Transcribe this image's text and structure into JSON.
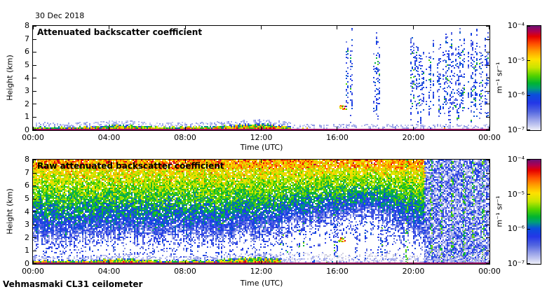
{
  "page": {
    "date_label": "30 Dec 2018",
    "footer_label": "Vehmasmaki CL31 ceilometer",
    "background": "#ffffff",
    "frame_color": "#000000"
  },
  "color_scale": {
    "description": "log backscatter 1e-7 (pale) to 1e-4 (dark purple)",
    "stops": [
      [
        0,
        "#eceef9"
      ],
      [
        0.04,
        "#c9cdf2"
      ],
      [
        0.1,
        "#97a1e9"
      ],
      [
        0.18,
        "#5164e0"
      ],
      [
        0.26,
        "#2337e8"
      ],
      [
        0.34,
        "#0a50dc"
      ],
      [
        0.4,
        "#00a078"
      ],
      [
        0.45,
        "#00b432"
      ],
      [
        0.52,
        "#50d200"
      ],
      [
        0.6,
        "#c8e600"
      ],
      [
        0.68,
        "#ffe100"
      ],
      [
        0.76,
        "#ff9c00"
      ],
      [
        0.83,
        "#ff5000"
      ],
      [
        0.9,
        "#e60000"
      ],
      [
        0.95,
        "#b00050"
      ],
      [
        1,
        "#701070"
      ]
    ]
  },
  "chart_data": [
    {
      "type": "heatmap",
      "title": "Attenuated backscatter coefficient",
      "xlabel": "Time (UTC)",
      "ylabel": "Height (km)",
      "x_ticks": [
        "00:00",
        "04:00",
        "08:00",
        "12:00",
        "16:00",
        "20:00",
        "00:00"
      ],
      "x_range_hours": [
        0,
        24
      ],
      "y_ticks": [
        "0",
        "1",
        "2",
        "3",
        "4",
        "5",
        "6",
        "7",
        "8"
      ],
      "y_range_km": [
        0,
        8
      ],
      "colorbar": {
        "unit": "m⁻¹ sr⁻¹",
        "tick_labels": [
          "10⁻⁴",
          "10⁻⁵",
          "10⁻⁶",
          "10⁻⁷"
        ],
        "min": 1e-07,
        "max": 0.0001
      },
      "seed": 11,
      "features": [
        {
          "kind": "surface_band",
          "time_h": [
            0,
            24
          ],
          "base_top_km": 0.25,
          "bumps": [
            {
              "center_h": 4.7,
              "width_h": 1.3,
              "extra_km": 0.15
            },
            {
              "center_h": 11.6,
              "width_h": 1.7,
              "extra_km": 0.25
            }
          ],
          "thin_after_h": 13.5,
          "thin_top_km": 0.12,
          "sparse_after_h": 16.5
        },
        {
          "kind": "virga_streaks",
          "bot_km": [
            0.5,
            2.2
          ],
          "top_km": [
            5.6,
            7.8
          ],
          "groups": [
            {
              "time_h": [
                16.25,
                16.8
              ],
              "col_prob": 0.5,
              "density": 0.25
            },
            {
              "time_h": [
                17.75,
                18.55
              ],
              "col_prob": 0.5,
              "density": 0.25
            },
            {
              "time_h": [
                19.85,
                23.95
              ],
              "col_prob": 0.8,
              "density": 0.3
            }
          ]
        },
        {
          "kind": "cloud_spot",
          "time_h": 16.2,
          "height_km": 1.78
        }
      ]
    },
    {
      "type": "heatmap",
      "title": "Raw attenuated backscatter coefficient",
      "xlabel": "Time (UTC)",
      "ylabel": "Height (km)",
      "x_ticks": [
        "00:00",
        "04:00",
        "08:00",
        "12:00",
        "16:00",
        "20:00",
        "00:00"
      ],
      "x_range_hours": [
        0,
        24
      ],
      "y_ticks": [
        "0",
        "1",
        "2",
        "3",
        "4",
        "5",
        "6",
        "7",
        "8"
      ],
      "y_range_km": [
        0,
        8
      ],
      "colorbar": {
        "unit": "m⁻¹ sr⁻¹",
        "tick_labels": [
          "10⁻⁴",
          "10⁻⁵",
          "10⁻⁶",
          "10⁻⁷"
        ],
        "min": 1e-07,
        "max": 0.0001
      },
      "seed": 3,
      "features": [
        {
          "kind": "noise_field",
          "time_h": [
            0,
            20.6
          ],
          "top_value": 0.72,
          "gamma": 0.7,
          "floor_km_points": [
            [
              0,
              2.1
            ],
            [
              9,
              2.2
            ],
            [
              12,
              2.3
            ],
            [
              13.5,
              3.0
            ],
            [
              16,
              3.3
            ],
            [
              17,
              3.9
            ],
            [
              18,
              3.7
            ],
            [
              19,
              3.1
            ],
            [
              20,
              2.6
            ],
            [
              20.6,
              2.2
            ]
          ]
        },
        {
          "kind": "night_noise",
          "time_h": [
            20.6,
            24
          ],
          "value": 0.15,
          "spread": 0.16,
          "gap_prob": 0.16
        },
        {
          "kind": "green_streaks",
          "times_h": [
            19.6,
            20.9,
            21.4,
            22.0,
            22.6,
            23.1,
            23.6
          ],
          "value": 0.48,
          "density": 0.3
        },
        {
          "kind": "virga_streaks",
          "bot_km": [
            0.15,
            0.7
          ],
          "top_km": [
            2.8,
            4.4
          ],
          "groups": [
            {
              "time_h": [
                13.0,
                13.35
              ],
              "col_prob": 0.5,
              "density": 0.3
            },
            {
              "time_h": [
                14.0,
                14.3
              ],
              "col_prob": 0.45,
              "density": 0.28
            },
            {
              "time_h": [
                15.85,
                17.2
              ],
              "col_prob": 0.55,
              "density": 0.32
            },
            {
              "time_h": [
                17.45,
                18.65
              ],
              "col_prob": 0.5,
              "density": 0.3
            },
            {
              "time_h": [
                19.2,
                19.65
              ],
              "col_prob": 0.5,
              "density": 0.3
            }
          ]
        },
        {
          "kind": "gray_speckle",
          "time_h": [
            12.5,
            24
          ],
          "height_km": [
            0,
            0.85
          ],
          "density": 0.2
        },
        {
          "kind": "surface_band",
          "time_h": [
            0,
            24
          ],
          "base_top_km": 0.25,
          "bumps": [
            {
              "center_h": 4.7,
              "width_h": 1.3,
              "extra_km": 0.15
            },
            {
              "center_h": 11.6,
              "width_h": 1.7,
              "extra_km": 0.25
            }
          ],
          "thin_after_h": 13.0,
          "thin_top_km": 0.12,
          "sparse_after_h": 16.0
        },
        {
          "kind": "cloud_spot",
          "time_h": 16.12,
          "height_km": 1.88
        }
      ]
    }
  ]
}
